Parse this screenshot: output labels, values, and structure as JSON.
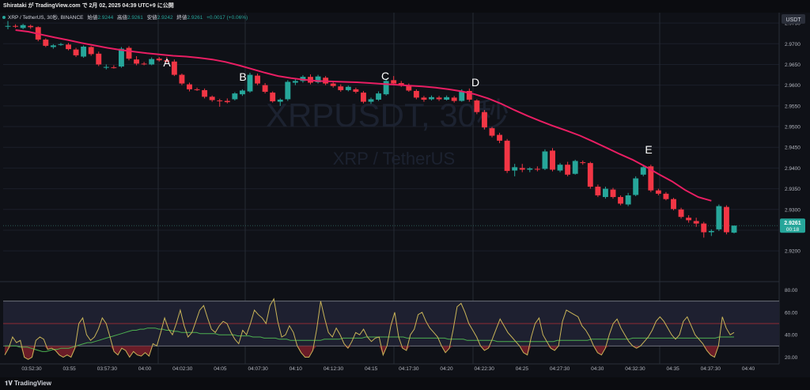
{
  "header": {
    "publish_line": "Shirataki が TradingView.com で 2月 02, 2025 04:39 UTC+9 に公開"
  },
  "legend": {
    "symbol_line": "XRP / TetherUS, 30秒, BINANCE",
    "open_label": "始値",
    "open": "2.9244",
    "high_label": "高値",
    "high": "2.9261",
    "low_label": "安値",
    "low": "2.9242",
    "close_label": "終値",
    "close": "2.9261",
    "change": "+0.0017 (+0.06%)"
  },
  "watermark": {
    "ticker": "XRPUSDT, 30秒",
    "pair": "XRP / TetherUS"
  },
  "currency_badge": "USDT",
  "price_tag": {
    "price": "2.9261",
    "countdown": "00:18"
  },
  "footer": {
    "brand": "TradingView"
  },
  "colors": {
    "up": "#26a69a",
    "down": "#f23645",
    "ma": "#e91e63",
    "osc": "#c9b458",
    "signal": "#4caf50",
    "background": "#0f1117"
  },
  "chart_data": {
    "type": "candlestick",
    "price_axis": {
      "ticks": [
        "2.9750",
        "2.9700",
        "2.9650",
        "2.9600",
        "2.9550",
        "2.9500",
        "2.9450",
        "2.9400",
        "2.9350",
        "2.9300",
        "2.9250",
        "2.9200"
      ],
      "range": [
        2.9185,
        2.9775
      ]
    },
    "time_axis": {
      "ticks": [
        "03:52:30",
        "03:55",
        "03:57:30",
        "04:00",
        "04:02:30",
        "04:05",
        "04:07:30",
        "04:10",
        "04:12:30",
        "04:15",
        "04:17:30",
        "04:20",
        "04:22:30",
        "04:25",
        "04:27:30",
        "04:30",
        "04:32:30",
        "04:35",
        "04:37:30",
        "04:40"
      ]
    },
    "candles": [
      {
        "o": 2.9743,
        "h": 2.9755,
        "l": 2.9735,
        "c": 2.9743
      },
      {
        "o": 2.9743,
        "h": 2.9747,
        "l": 2.9738,
        "c": 2.9742
      },
      {
        "o": 2.9738,
        "h": 2.9748,
        "l": 2.9735,
        "c": 2.9745
      },
      {
        "o": 2.9743,
        "h": 2.9746,
        "l": 2.9736,
        "c": 2.974
      },
      {
        "o": 2.974,
        "h": 2.9742,
        "l": 2.9706,
        "c": 2.971
      },
      {
        "o": 2.971,
        "h": 2.9713,
        "l": 2.9692,
        "c": 2.9695
      },
      {
        "o": 2.9692,
        "h": 2.9699,
        "l": 2.9688,
        "c": 2.9696
      },
      {
        "o": 2.9697,
        "h": 2.9702,
        "l": 2.9695,
        "c": 2.9699
      },
      {
        "o": 2.9698,
        "h": 2.9702,
        "l": 2.9684,
        "c": 2.9687
      },
      {
        "o": 2.9686,
        "h": 2.969,
        "l": 2.9668,
        "c": 2.9672
      },
      {
        "o": 2.9669,
        "h": 2.9696,
        "l": 2.9666,
        "c": 2.9693
      },
      {
        "o": 2.9692,
        "h": 2.9694,
        "l": 2.9671,
        "c": 2.9675
      },
      {
        "o": 2.9676,
        "h": 2.9681,
        "l": 2.9646,
        "c": 2.965
      },
      {
        "o": 2.9642,
        "h": 2.965,
        "l": 2.9638,
        "c": 2.9644
      },
      {
        "o": 2.9643,
        "h": 2.9648,
        "l": 2.964,
        "c": 2.9642
      },
      {
        "o": 2.9645,
        "h": 2.9692,
        "l": 2.9642,
        "c": 2.9688
      },
      {
        "o": 2.969,
        "h": 2.9694,
        "l": 2.966,
        "c": 2.9664
      },
      {
        "o": 2.9662,
        "h": 2.967,
        "l": 2.9648,
        "c": 2.9652
      },
      {
        "o": 2.9652,
        "h": 2.9656,
        "l": 2.9648,
        "c": 2.9651
      },
      {
        "o": 2.965,
        "h": 2.9667,
        "l": 2.9648,
        "c": 2.9663
      },
      {
        "o": 2.9664,
        "h": 2.9668,
        "l": 2.9657,
        "c": 2.966
      },
      {
        "o": 2.966,
        "h": 2.9668,
        "l": 2.9654,
        "c": 2.9657
      },
      {
        "o": 2.9657,
        "h": 2.9662,
        "l": 2.9622,
        "c": 2.9625
      },
      {
        "o": 2.9625,
        "h": 2.9628,
        "l": 2.96,
        "c": 2.9604
      },
      {
        "o": 2.9602,
        "h": 2.9606,
        "l": 2.9585,
        "c": 2.959
      },
      {
        "o": 2.959,
        "h": 2.9594,
        "l": 2.9586,
        "c": 2.9589
      },
      {
        "o": 2.9588,
        "h": 2.9592,
        "l": 2.9568,
        "c": 2.9572
      },
      {
        "o": 2.9572,
        "h": 2.9575,
        "l": 2.956,
        "c": 2.9564
      },
      {
        "o": 2.9563,
        "h": 2.9567,
        "l": 2.9548,
        "c": 2.9562
      },
      {
        "o": 2.9562,
        "h": 2.9568,
        "l": 2.9556,
        "c": 2.9559
      },
      {
        "o": 2.9566,
        "h": 2.9583,
        "l": 2.9563,
        "c": 2.958
      },
      {
        "o": 2.9578,
        "h": 2.959,
        "l": 2.9574,
        "c": 2.9587
      },
      {
        "o": 2.9585,
        "h": 2.963,
        "l": 2.9582,
        "c": 2.9625
      },
      {
        "o": 2.9623,
        "h": 2.9628,
        "l": 2.96,
        "c": 2.9604
      },
      {
        "o": 2.96,
        "h": 2.9605,
        "l": 2.958,
        "c": 2.9584
      },
      {
        "o": 2.9582,
        "h": 2.9585,
        "l": 2.9558,
        "c": 2.9561
      },
      {
        "o": 2.956,
        "h": 2.9568,
        "l": 2.955,
        "c": 2.9565
      },
      {
        "o": 2.9566,
        "h": 2.9612,
        "l": 2.9562,
        "c": 2.9608
      },
      {
        "o": 2.9606,
        "h": 2.9616,
        "l": 2.96,
        "c": 2.961
      },
      {
        "o": 2.961,
        "h": 2.9624,
        "l": 2.9606,
        "c": 2.962
      },
      {
        "o": 2.962,
        "h": 2.9626,
        "l": 2.9602,
        "c": 2.9606
      },
      {
        "o": 2.9607,
        "h": 2.9625,
        "l": 2.9604,
        "c": 2.9621
      },
      {
        "o": 2.9618,
        "h": 2.9622,
        "l": 2.96,
        "c": 2.9604
      },
      {
        "o": 2.9604,
        "h": 2.9608,
        "l": 2.9594,
        "c": 2.9598
      },
      {
        "o": 2.9597,
        "h": 2.9602,
        "l": 2.9584,
        "c": 2.9588
      },
      {
        "o": 2.9588,
        "h": 2.9599,
        "l": 2.9585,
        "c": 2.9596
      },
      {
        "o": 2.959,
        "h": 2.9594,
        "l": 2.958,
        "c": 2.9584
      },
      {
        "o": 2.9582,
        "h": 2.9586,
        "l": 2.9556,
        "c": 2.956
      },
      {
        "o": 2.956,
        "h": 2.957,
        "l": 2.9555,
        "c": 2.9566
      },
      {
        "o": 2.9565,
        "h": 2.9585,
        "l": 2.9562,
        "c": 2.958
      },
      {
        "o": 2.9578,
        "h": 2.9616,
        "l": 2.9575,
        "c": 2.961
      },
      {
        "o": 2.9612,
        "h": 2.9622,
        "l": 2.96,
        "c": 2.9604
      },
      {
        "o": 2.9605,
        "h": 2.961,
        "l": 2.9596,
        "c": 2.9599
      },
      {
        "o": 2.96,
        "h": 2.9604,
        "l": 2.9584,
        "c": 2.9587
      },
      {
        "o": 2.9586,
        "h": 2.959,
        "l": 2.9566,
        "c": 2.957
      },
      {
        "o": 2.957,
        "h": 2.9574,
        "l": 2.956,
        "c": 2.9565
      },
      {
        "o": 2.9566,
        "h": 2.9575,
        "l": 2.9563,
        "c": 2.9571
      },
      {
        "o": 2.957,
        "h": 2.9574,
        "l": 2.9562,
        "c": 2.9566
      },
      {
        "o": 2.9565,
        "h": 2.9575,
        "l": 2.9563,
        "c": 2.9571
      },
      {
        "o": 2.957,
        "h": 2.9574,
        "l": 2.9558,
        "c": 2.9562
      },
      {
        "o": 2.9562,
        "h": 2.959,
        "l": 2.956,
        "c": 2.9585
      },
      {
        "o": 2.9586,
        "h": 2.9592,
        "l": 2.956,
        "c": 2.9565
      },
      {
        "o": 2.9563,
        "h": 2.9566,
        "l": 2.953,
        "c": 2.9535
      },
      {
        "o": 2.9535,
        "h": 2.954,
        "l": 2.9493,
        "c": 2.9498
      },
      {
        "o": 2.9496,
        "h": 2.9499,
        "l": 2.9474,
        "c": 2.9478
      },
      {
        "o": 2.948,
        "h": 2.9485,
        "l": 2.946,
        "c": 2.9466
      },
      {
        "o": 2.9466,
        "h": 2.947,
        "l": 2.9388,
        "c": 2.9393
      },
      {
        "o": 2.9394,
        "h": 2.941,
        "l": 2.938,
        "c": 2.9402
      },
      {
        "o": 2.94,
        "h": 2.941,
        "l": 2.939,
        "c": 2.9396
      },
      {
        "o": 2.9396,
        "h": 2.9402,
        "l": 2.939,
        "c": 2.9399
      },
      {
        "o": 2.9398,
        "h": 2.9404,
        "l": 2.9392,
        "c": 2.9396
      },
      {
        "o": 2.9398,
        "h": 2.9445,
        "l": 2.9395,
        "c": 2.944
      },
      {
        "o": 2.9442,
        "h": 2.9448,
        "l": 2.9392,
        "c": 2.9396
      },
      {
        "o": 2.9394,
        "h": 2.9412,
        "l": 2.939,
        "c": 2.9408
      },
      {
        "o": 2.9408,
        "h": 2.9415,
        "l": 2.938,
        "c": 2.9384
      },
      {
        "o": 2.9386,
        "h": 2.942,
        "l": 2.9384,
        "c": 2.9417
      },
      {
        "o": 2.9414,
        "h": 2.9418,
        "l": 2.9408,
        "c": 2.9412
      },
      {
        "o": 2.9412,
        "h": 2.9415,
        "l": 2.935,
        "c": 2.9355
      },
      {
        "o": 2.9355,
        "h": 2.936,
        "l": 2.933,
        "c": 2.9334
      },
      {
        "o": 2.933,
        "h": 2.9355,
        "l": 2.9326,
        "c": 2.935
      },
      {
        "o": 2.9348,
        "h": 2.9352,
        "l": 2.9326,
        "c": 2.933
      },
      {
        "o": 2.933,
        "h": 2.9334,
        "l": 2.931,
        "c": 2.9314
      },
      {
        "o": 2.9312,
        "h": 2.934,
        "l": 2.9308,
        "c": 2.9334
      },
      {
        "o": 2.9335,
        "h": 2.938,
        "l": 2.9332,
        "c": 2.9375
      },
      {
        "o": 2.9384,
        "h": 2.9408,
        "l": 2.938,
        "c": 2.9402
      },
      {
        "o": 2.9404,
        "h": 2.9408,
        "l": 2.9342,
        "c": 2.9346
      },
      {
        "o": 2.9346,
        "h": 2.935,
        "l": 2.9334,
        "c": 2.9338
      },
      {
        "o": 2.9338,
        "h": 2.9342,
        "l": 2.9322,
        "c": 2.9325
      },
      {
        "o": 2.9325,
        "h": 2.9328,
        "l": 2.9298,
        "c": 2.9301
      },
      {
        "o": 2.93,
        "h": 2.9304,
        "l": 2.9278,
        "c": 2.9282
      },
      {
        "o": 2.928,
        "h": 2.9286,
        "l": 2.9268,
        "c": 2.9274
      },
      {
        "o": 2.9272,
        "h": 2.928,
        "l": 2.9258,
        "c": 2.9266
      },
      {
        "o": 2.9266,
        "h": 2.927,
        "l": 2.9232,
        "c": 2.9245
      },
      {
        "o": 2.9245,
        "h": 2.9252,
        "l": 2.9236,
        "c": 2.9248
      },
      {
        "o": 2.9252,
        "h": 2.9312,
        "l": 2.9248,
        "c": 2.9308
      },
      {
        "o": 2.9306,
        "h": 2.931,
        "l": 2.924,
        "c": 2.9245
      },
      {
        "o": 2.9244,
        "h": 2.9261,
        "l": 2.9242,
        "c": 2.9261
      }
    ],
    "ma_line": [
      2.9733,
      2.9729,
      2.9722,
      2.9715,
      2.9709,
      2.9702,
      2.9696,
      2.969,
      2.9685,
      2.9681,
      2.9677,
      2.9674,
      2.9671,
      2.9669,
      2.9666,
      2.9662,
      2.9656,
      2.9648,
      2.9639,
      2.963,
      2.9622,
      2.9617,
      2.9613,
      2.961,
      2.9609,
      2.9608,
      2.9607,
      2.9605,
      2.9603,
      2.9601,
      2.9599,
      2.9597,
      2.9594,
      2.959,
      2.9585,
      2.9578,
      2.9568,
      2.9555,
      2.954,
      2.9526,
      2.9513,
      2.9501,
      2.949,
      2.9478,
      2.9464,
      2.9449,
      2.9434,
      2.942,
      2.9403,
      2.9385,
      2.9368,
      2.9347,
      2.933,
      2.9321
    ],
    "ma_span": [
      1,
      93
    ],
    "annotations": [
      "A",
      "B",
      "C",
      "D",
      "E"
    ],
    "oscillator": {
      "ticks": [
        "80.00",
        "60.00",
        "40.00",
        "20.00"
      ],
      "range": [
        14,
        86
      ],
      "bands": [
        30,
        50,
        70
      ],
      "main": [
        22,
        28,
        38,
        33,
        35,
        20,
        18,
        20,
        35,
        38,
        36,
        27,
        28,
        26,
        22,
        20,
        22,
        20,
        28,
        50,
        55,
        40,
        35,
        38,
        45,
        55,
        50,
        38,
        25,
        22,
        28,
        26,
        20,
        25,
        22,
        21,
        24,
        21,
        32,
        30,
        42,
        55,
        45,
        40,
        50,
        62,
        48,
        38,
        42,
        52,
        62,
        66,
        55,
        45,
        42,
        48,
        52,
        50,
        42,
        36,
        32,
        44,
        40,
        50,
        62,
        58,
        55,
        50,
        66,
        72,
        52,
        38,
        40,
        48,
        42,
        30,
        24,
        20,
        20,
        26,
        45,
        70,
        55,
        42,
        38,
        46,
        40,
        32,
        28,
        34,
        42,
        40,
        45,
        38,
        34,
        37,
        38,
        22,
        30,
        48,
        60,
        38,
        28,
        26,
        40,
        45,
        58,
        60,
        52,
        46,
        42,
        38,
        30,
        24,
        28,
        45,
        65,
        68,
        60,
        50,
        44,
        38,
        30,
        26,
        28,
        36,
        45,
        54,
        48,
        42,
        38,
        34,
        30,
        24,
        22,
        38,
        50,
        55,
        40,
        34,
        28,
        26,
        30,
        52,
        62,
        60,
        58,
        56,
        48,
        44,
        38,
        30,
        24,
        22,
        28,
        40,
        50,
        54,
        46,
        40,
        34,
        30,
        28,
        30,
        34,
        38,
        44,
        52,
        56,
        52,
        46,
        40,
        36,
        40,
        52,
        56,
        48,
        40,
        36,
        32,
        26,
        22,
        20,
        30,
        56,
        46,
        40,
        42
      ],
      "signal": [
        30,
        30,
        30,
        30,
        29,
        29,
        29,
        28,
        27,
        26,
        25,
        25,
        26,
        27,
        27,
        28,
        28,
        28,
        29,
        30,
        31,
        32,
        33,
        33,
        34,
        35,
        36,
        37,
        38,
        39,
        40,
        41,
        42,
        43,
        44,
        44,
        45,
        45,
        46,
        46,
        46,
        45,
        45,
        44,
        44,
        43,
        43,
        42,
        42,
        42,
        42,
        42,
        41,
        41,
        41,
        41,
        41,
        40,
        40,
        40,
        40,
        40,
        39,
        39,
        39,
        39,
        38,
        38,
        38,
        37,
        37,
        37,
        37,
        36,
        36,
        36,
        35,
        35,
        35,
        35,
        35,
        35,
        35,
        35,
        35,
        36,
        36,
        36,
        36,
        36,
        37,
        37,
        37,
        37,
        37,
        37,
        38,
        38,
        38,
        38,
        38,
        38,
        38,
        38,
        38,
        38,
        38,
        37,
        37,
        37,
        37,
        37,
        37,
        37,
        37,
        37,
        37,
        37,
        36,
        36,
        36,
        36,
        36,
        35,
        35,
        35,
        35,
        35,
        35,
        35,
        35,
        34,
        34,
        34,
        34,
        34,
        34,
        34,
        34,
        34,
        34,
        34,
        34,
        34,
        34,
        34,
        34,
        35,
        35,
        35,
        35,
        35,
        35,
        35,
        35,
        35,
        36,
        36,
        36,
        36,
        36,
        36,
        36,
        36,
        36,
        36,
        36,
        37,
        37,
        37,
        37,
        37,
        37,
        37,
        37,
        37,
        37,
        37,
        37,
        37,
        37,
        37,
        37,
        37,
        37,
        37,
        37,
        37,
        37,
        37,
        38,
        38,
        38,
        38,
        38
      ]
    }
  }
}
